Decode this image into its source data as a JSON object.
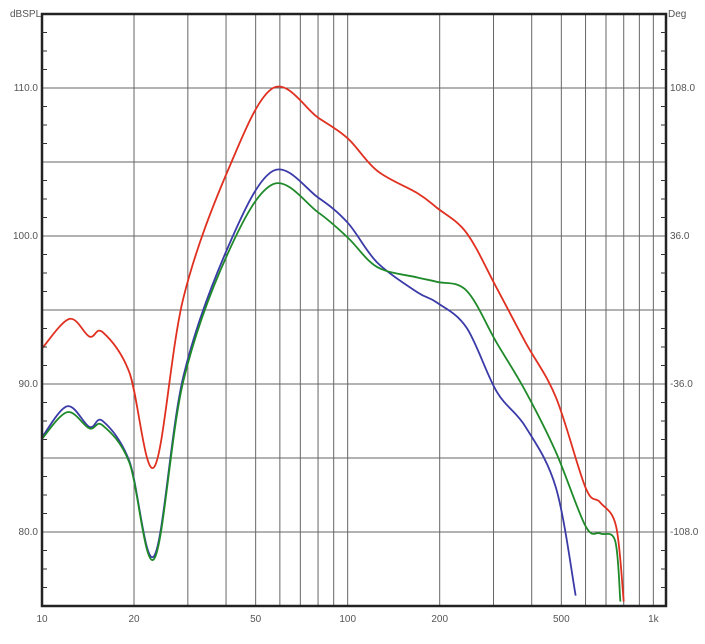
{
  "chart_data": {
    "type": "line",
    "title": "",
    "ylabel": "dBSPL",
    "y2label": "Deg",
    "xscale": "log",
    "xlim": [
      10,
      1100
    ],
    "ylim": [
      75,
      115
    ],
    "y2lim": [
      -144,
      144
    ],
    "grid": true,
    "x_ticks": [
      10,
      20,
      50,
      100,
      200,
      500,
      1000
    ],
    "x_tick_labels": [
      "10",
      "20",
      "50",
      "100",
      "200",
      "500",
      "1k"
    ],
    "x_gridlines": [
      20,
      30,
      40,
      50,
      60,
      70,
      80,
      90,
      100,
      200,
      300,
      400,
      500,
      600,
      700,
      800,
      900,
      1000
    ],
    "y_ticks": [
      80,
      90,
      100,
      110
    ],
    "y_tick_labels": [
      "80.0",
      "90.0",
      "100.0",
      "110.0"
    ],
    "y_gridlines": [
      80,
      85,
      90,
      95,
      100,
      105,
      110
    ],
    "y2_ticks": [
      -108,
      -36,
      36,
      108
    ],
    "y2_tick_labels": [
      "-108.0",
      "-36.0",
      "36.0",
      "108.0"
    ],
    "series": [
      {
        "color": "#e03020",
        "x": [
          10,
          12.3,
          14.3,
          15.8,
          19.3,
          23.3,
          29,
          40.7,
          57,
          80,
          100,
          125,
          169,
          196,
          245,
          307,
          382,
          480,
          600,
          670,
          755,
          800
        ],
        "y": [
          92.4,
          94.4,
          93.2,
          93.5,
          90.8,
          84.4,
          95.8,
          104.5,
          110,
          108,
          106.6,
          104.4,
          102.9,
          101.9,
          100.2,
          96.5,
          92.8,
          89.1,
          83,
          82,
          80.4,
          75.3
        ]
      },
      {
        "color": "#3a3aa8",
        "x": [
          10,
          12.1,
          14.3,
          15.8,
          19.3,
          23.3,
          29,
          40.7,
          57,
          80,
          100,
          125,
          169,
          196,
          245,
          307,
          382,
          480,
          557
        ],
        "y": [
          86.4,
          88.5,
          87.1,
          87.5,
          84.8,
          78.4,
          90.5,
          99.3,
          104.4,
          102.6,
          100.9,
          98.2,
          96.2,
          95.5,
          93.8,
          89.5,
          87.1,
          83,
          75.7
        ]
      },
      {
        "color": "#1f8a2a",
        "x": [
          10,
          12.1,
          14.3,
          15.8,
          19.3,
          23.3,
          29,
          40.7,
          57,
          80,
          100,
          125,
          169,
          196,
          245,
          307,
          382,
          480,
          600,
          670,
          750,
          780
        ],
        "y": [
          86.3,
          88.1,
          87,
          87.2,
          84.7,
          78.2,
          90.2,
          98.9,
          103.5,
          101.6,
          99.9,
          97.9,
          97.2,
          96.9,
          96.3,
          92.8,
          89.5,
          85.4,
          80.4,
          79.9,
          79.4,
          75.3
        ]
      }
    ]
  }
}
